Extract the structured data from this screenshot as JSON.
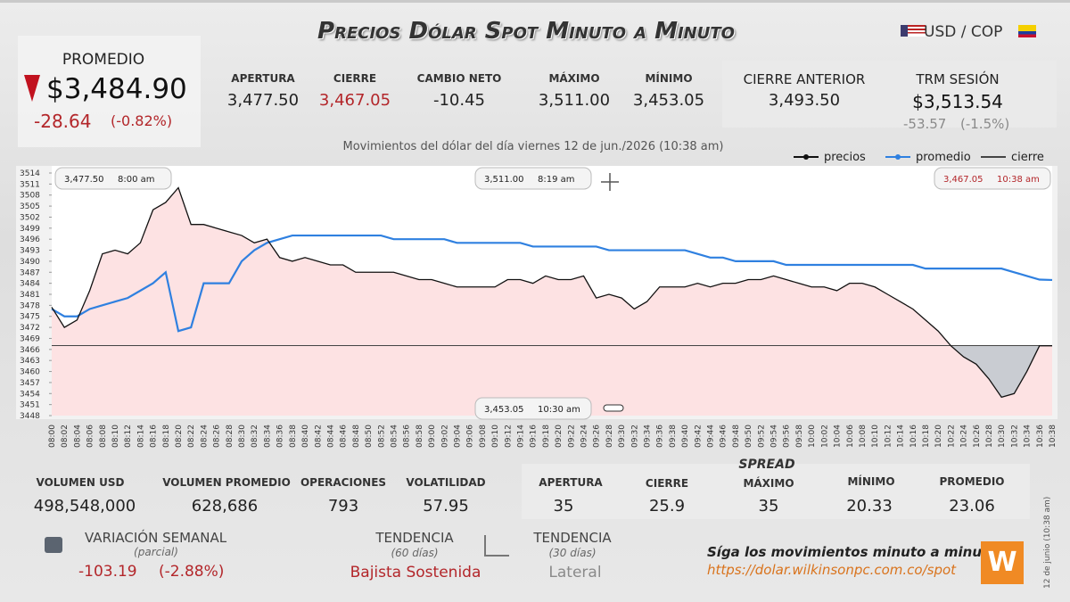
{
  "header": {
    "title": "Precios Dólar Spot Minuto a Minuto",
    "pair": "USD / COP"
  },
  "promedio": {
    "label": "PROMEDIO",
    "value": "$3,484.90",
    "change": "-28.64",
    "change_pct": "(-0.82%)"
  },
  "stats": [
    {
      "label": "APERTURA",
      "value": "3,477.50"
    },
    {
      "label": "CIERRE",
      "value": "3,467.05"
    },
    {
      "label": "CAMBIO NETO",
      "value": "-10.45"
    },
    {
      "label": "MÁXIMO",
      "value": "3,511.00"
    },
    {
      "label": "MÍNIMO",
      "value": "3,453.05"
    }
  ],
  "cierre_anterior": {
    "label": "CIERRE ANTERIOR",
    "value": "3,493.50"
  },
  "trm": {
    "label": "TRM SESIÓN",
    "value": "$3,513.54",
    "change": "-53.57",
    "change_pct": "(-1.5%)"
  },
  "chart_data": {
    "type": "line",
    "subtitle": "Movimientos del dólar del día viernes 12 de jun./2026 (10:38 am)",
    "categories": [
      "08:00",
      "08:02",
      "08:04",
      "08:06",
      "08:08",
      "08:10",
      "08:12",
      "08:14",
      "08:16",
      "08:18",
      "08:20",
      "08:22",
      "08:24",
      "08:26",
      "08:28",
      "08:30",
      "08:32",
      "08:34",
      "08:36",
      "08:38",
      "08:40",
      "08:42",
      "08:44",
      "08:46",
      "08:48",
      "08:50",
      "08:52",
      "08:54",
      "08:56",
      "08:58",
      "09:00",
      "09:02",
      "09:04",
      "09:06",
      "09:08",
      "09:10",
      "09:12",
      "09:14",
      "09:16",
      "09:18",
      "09:20",
      "09:22",
      "09:24",
      "09:26",
      "09:28",
      "09:30",
      "09:32",
      "09:34",
      "09:36",
      "09:38",
      "09:40",
      "09:42",
      "09:44",
      "09:46",
      "09:48",
      "09:50",
      "09:52",
      "09:54",
      "09:56",
      "09:58",
      "10:00",
      "10:02",
      "10:04",
      "10:06",
      "10:08",
      "10:10",
      "10:12",
      "10:14",
      "10:16",
      "10:18",
      "10:20",
      "10:22",
      "10:24",
      "10:26",
      "10:28",
      "10:30",
      "10:32",
      "10:34",
      "10:36",
      "10:38"
    ],
    "series": [
      {
        "name": "precios",
        "color": "#111111",
        "values": [
          3477.5,
          3472,
          3474,
          3482,
          3492,
          3493,
          3492,
          3495,
          3504,
          3506,
          3510,
          3500,
          3500,
          3499,
          3498,
          3497,
          3495,
          3496,
          3491,
          3490,
          3491,
          3490,
          3489,
          3489,
          3487,
          3487,
          3487,
          3487,
          3486,
          3485,
          3485,
          3484,
          3483,
          3483,
          3483,
          3483,
          3485,
          3485,
          3484,
          3486,
          3485,
          3485,
          3486,
          3480,
          3481,
          3480,
          3477,
          3479,
          3483,
          3483,
          3483,
          3484,
          3483,
          3484,
          3484,
          3485,
          3485,
          3486,
          3485,
          3484,
          3483,
          3483,
          3482,
          3484,
          3484,
          3483,
          3481,
          3479,
          3477,
          3474,
          3471,
          3467,
          3464,
          3462,
          3458,
          3453,
          3454,
          3460,
          3467,
          3467
        ]
      },
      {
        "name": "promedio",
        "color": "#2f80e0",
        "values": [
          3477,
          3475,
          3475,
          3477,
          3478,
          3479,
          3480,
          3482,
          3484,
          3487,
          3471,
          3472,
          3484,
          3484,
          3484,
          3490,
          3493,
          3495,
          3496,
          3497,
          3497,
          3497,
          3497,
          3497,
          3497,
          3497,
          3497,
          3496,
          3496,
          3496,
          3496,
          3496,
          3495,
          3495,
          3495,
          3495,
          3495,
          3495,
          3494,
          3494,
          3494,
          3494,
          3494,
          3494,
          3493,
          3493,
          3493,
          3493,
          3493,
          3493,
          3493,
          3492,
          3491,
          3491,
          3490,
          3490,
          3490,
          3490,
          3489,
          3489,
          3489,
          3489,
          3489,
          3489,
          3489,
          3489,
          3489,
          3489,
          3489,
          3488,
          3488,
          3488,
          3488,
          3488,
          3488,
          3488,
          3487,
          3486,
          3485,
          3484.9
        ]
      }
    ],
    "reference_line": {
      "name": "cierre",
      "color": "#444444",
      "value": 3467.05
    },
    "annotations": [
      {
        "value": "3,477.50",
        "time": "8:00 am"
      },
      {
        "value": "3,511.00",
        "time": "8:19 am"
      },
      {
        "value": "3,467.05",
        "time": "10:38 am"
      },
      {
        "value": "3,453.05",
        "time": "10:30 am"
      }
    ],
    "ylim": [
      3448,
      3514
    ],
    "yticks": [
      3448,
      3451,
      3454,
      3457,
      3460,
      3463,
      3466,
      3469,
      3472,
      3475,
      3478,
      3481,
      3484,
      3487,
      3490,
      3493,
      3496,
      3499,
      3502,
      3505,
      3508,
      3511,
      3514
    ],
    "grid": false
  },
  "market": [
    {
      "label": "VOLUMEN USD",
      "value": "498,548,000"
    },
    {
      "label": "VOLUMEN PROMEDIO",
      "value": "628,686"
    },
    {
      "label": "OPERACIONES",
      "value": "793"
    },
    {
      "label": "VOLATILIDAD",
      "value": "57.95"
    }
  ],
  "spread": {
    "title": "SPREAD",
    "items": [
      {
        "label": "APERTURA",
        "value": "35"
      },
      {
        "label": "CIERRE",
        "value": "25.9"
      },
      {
        "label": "MÁXIMO",
        "value": "35"
      },
      {
        "label": "MÍNIMO",
        "value": "20.33"
      },
      {
        "label": "PROMEDIO",
        "value": "23.06"
      }
    ]
  },
  "weekly": {
    "label": "VARIACIÓN SEMANAL",
    "note": "(parcial)",
    "change": "-103.19",
    "change_pct": "(-2.88%)"
  },
  "trends": [
    {
      "label": "TENDENCIA",
      "note": "(60 días)",
      "value": "Bajista Sostenida"
    },
    {
      "label": "TENDENCIA",
      "note": "(30 días)",
      "value": "Lateral"
    }
  ],
  "footer": {
    "cta": "Síga los movimientos minuto a minuto:",
    "url": "https://dolar.wilkinsonpc.com.co/spot",
    "stamp": "12 de junio (10:38 am)"
  }
}
